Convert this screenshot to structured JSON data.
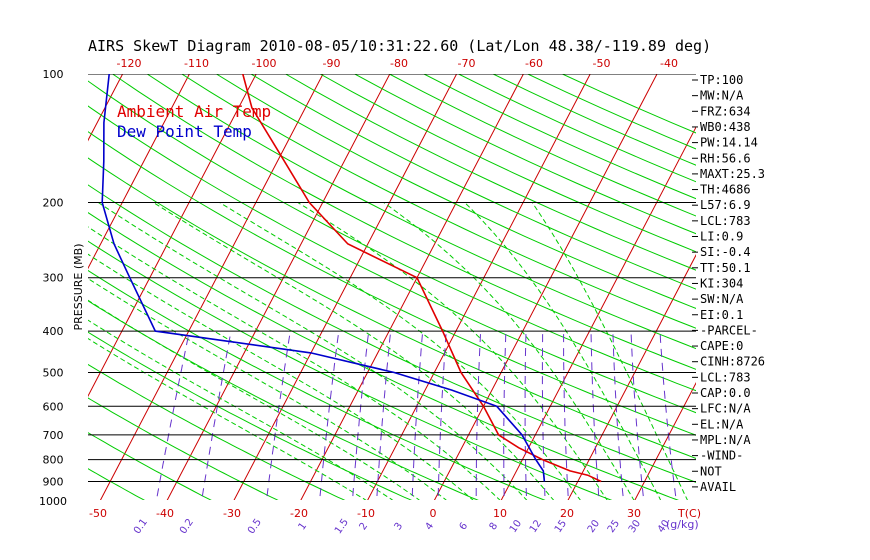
{
  "title": "AIRS SkewT Diagram 2010-08-05/10:31:22.60 (Lat/Lon 48.38/-119.89 deg)",
  "colors": {
    "ambient": "#e00000",
    "dewpoint": "#0000cc",
    "adiabat": "#00cc00",
    "isotherm": "#cc0000",
    "mixing": "#6633cc",
    "isobar": "#000000",
    "tick_label": "#cc0000",
    "mix_label": "#6633cc"
  },
  "chart_data": {
    "type": "line",
    "title": "AIRS SkewT Diagram 2010-08-05/10:31:22.60 (Lat/Lon 48.38/-119.89 deg)",
    "ylabel": "PRESSURE (MB)",
    "xlabel": "T(C)",
    "y_scale": "log",
    "ylim": [
      1000,
      100
    ],
    "pressure_ticks": [
      "100",
      "200",
      "300",
      "400",
      "500",
      "600",
      "700",
      "800",
      "900",
      "1000"
    ],
    "bottom_temp_ticks": [
      "-50",
      "-40",
      "-30",
      "-20",
      "-10",
      "0",
      "10",
      "20",
      "30"
    ],
    "top_temp_ticks": [
      "-120",
      "-110",
      "-100",
      "-90",
      "-80",
      "-70",
      "-60",
      "-50",
      "-40"
    ],
    "mixing_ratio_labels": [
      "0.1",
      "0.2",
      "0.5",
      "1",
      "1.5",
      "2",
      "3",
      "4",
      "6",
      "8",
      "10",
      "12",
      "15",
      "20",
      "25",
      "30",
      "40"
    ],
    "mixing_ratio_unit": "(g/kg)",
    "legend": [
      "Ambient Air Temp",
      "Dew Point Temp"
    ],
    "series": [
      {
        "name": "Ambient Air Temp",
        "x": [
          23.5,
          21.0,
          18.0,
          13.0,
          8.5,
          4.5,
          0.0,
          -6.0,
          -12.0,
          -20.0,
          -33.0,
          -42.0,
          -51.0,
          -58.0,
          -62.0
        ],
        "y": [
          900,
          870,
          850,
          800,
          750,
          700,
          600,
          500,
          400,
          300,
          250,
          200,
          150,
          120,
          100
        ]
      },
      {
        "name": "Dew Point Temp",
        "x": [
          15.0,
          14.0,
          12.0,
          8.0,
          2.0,
          -6.0,
          -16.0,
          -30.0,
          -55.0,
          -63.0,
          -68.0,
          -73.0,
          -76.0,
          -79.0,
          -82.0
        ],
        "y": [
          900,
          850,
          800,
          700,
          600,
          550,
          500,
          450,
          400,
          300,
          250,
          200,
          160,
          130,
          100
        ]
      }
    ]
  },
  "indices": [
    "TP:100",
    "MW:N/A",
    "FRZ:634",
    "WB0:438",
    "PW:14.14",
    "RH:56.6",
    "MAXT:25.3",
    "TH:4686",
    "L57:6.9",
    "LCL:783",
    "LI:0.9",
    "SI:-0.4",
    "TT:50.1",
    "KI:304",
    "SW:N/A",
    "EI:0.1",
    "-PARCEL-",
    "CAPE:0",
    "CINH:8726",
    "LCL:783",
    "CAP:0.0",
    "LFC:N/A",
    "EL:N/A",
    "MPL:N/A",
    "-WIND-",
    "NOT",
    "AVAIL"
  ]
}
